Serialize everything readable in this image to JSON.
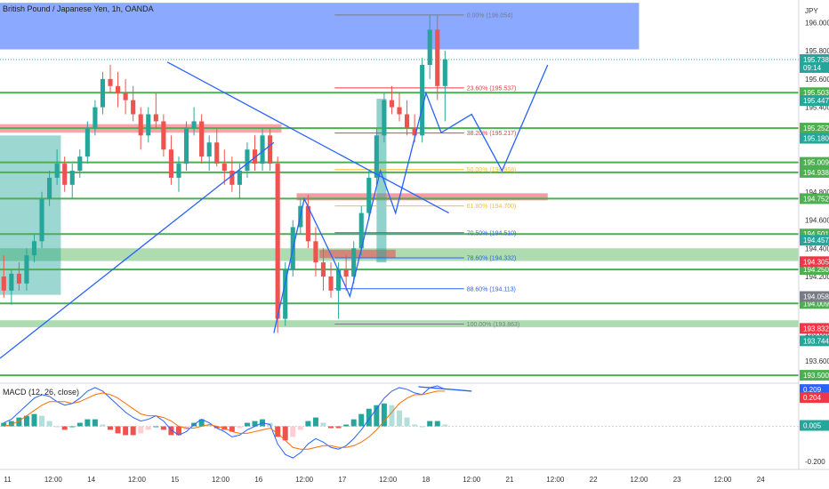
{
  "chart_data": {
    "type": "candlestick",
    "title": "British Pound / Japanese Yen, 1h, OANDA",
    "currency": "JPY",
    "price_axis_ticks": [
      196.0,
      195.8,
      195.6,
      195.4,
      195.2,
      195.0,
      194.8,
      194.6,
      194.4,
      194.2,
      194.0,
      193.8,
      193.6
    ],
    "price_range": [
      193.45,
      196.16
    ],
    "time_range": [
      0,
      105
    ],
    "time_ticks": [
      {
        "label": "11",
        "t": 1
      },
      {
        "label": "12:00",
        "t": 7
      },
      {
        "label": "14",
        "t": 12
      },
      {
        "label": "12:00",
        "t": 18
      },
      {
        "label": "15",
        "t": 23
      },
      {
        "label": "12:00",
        "t": 29
      },
      {
        "label": "16",
        "t": 34
      },
      {
        "label": "12:00",
        "t": 40
      },
      {
        "label": "17",
        "t": 45
      },
      {
        "label": "12:00",
        "t": 51
      },
      {
        "label": "18",
        "t": 56
      },
      {
        "label": "12:00",
        "t": 62
      },
      {
        "label": "21",
        "t": 67
      },
      {
        "label": "12:00",
        "t": 73
      },
      {
        "label": "22",
        "t": 78
      },
      {
        "label": "12:00",
        "t": 84
      },
      {
        "label": "23",
        "t": 89
      },
      {
        "label": "12:00",
        "t": 95
      },
      {
        "label": "24",
        "t": 100
      }
    ],
    "current_price": {
      "label": "195.738",
      "countdown": "09:14",
      "value": 195.738,
      "color": "#26a69a"
    },
    "horizontal_levels": [
      {
        "label": "195.503",
        "value": 195.503
      },
      {
        "label": "195.252",
        "value": 195.252
      },
      {
        "label": "195.009",
        "value": 195.009
      },
      {
        "label": "194.938",
        "value": 194.938
      },
      {
        "label": "194.752",
        "value": 194.752
      },
      {
        "label": "194.501",
        "value": 194.501
      },
      {
        "label": "194.250",
        "value": 194.25
      },
      {
        "label": "194.009",
        "value": 194.009
      },
      {
        "label": "193.500",
        "value": 193.5
      }
    ],
    "extra_price_tags": [
      {
        "label": "195.447",
        "value": 195.447,
        "color": "#26a69a"
      },
      {
        "label": "195.180",
        "value": 195.18,
        "color": "#26a69a"
      },
      {
        "label": "194.457",
        "value": 194.457,
        "color": "#26a69a"
      },
      {
        "label": "194.305",
        "value": 194.305,
        "color": "#f23645"
      },
      {
        "label": "194.058",
        "value": 194.058,
        "color": "#787b86"
      },
      {
        "label": "193.832",
        "value": 193.832,
        "color": "#f23645"
      },
      {
        "label": "193.744",
        "value": 193.744,
        "color": "#26a69a"
      }
    ],
    "fibonacci": [
      {
        "label": "0.00% (196.054)",
        "value": 196.054,
        "color": "#787b86"
      },
      {
        "label": "23.60% (195.537)",
        "value": 195.537,
        "color": "#f23645"
      },
      {
        "label": "38.20% (195.217)",
        "value": 195.217,
        "color": "#f23645"
      },
      {
        "label": "50.00% (194.958)",
        "value": 194.958,
        "color": "#f5c518"
      },
      {
        "label": "61.80% (194.700)",
        "value": 194.7,
        "color": "#f5c518"
      },
      {
        "label": "70.50% (194.510)",
        "value": 194.51,
        "color": "#2962ff"
      },
      {
        "label": "78.60% (194.332)",
        "value": 194.332,
        "color": "#2962ff"
      },
      {
        "label": "88.60% (194.113)",
        "value": 194.113,
        "color": "#2962ff"
      },
      {
        "label": "100.00% (193.863)",
        "value": 193.863,
        "color": "#787b86"
      }
    ],
    "zones": [
      {
        "t0": 0,
        "t1": 84,
        "p0": 195.81,
        "p1": 196.14,
        "color": "#2962ff",
        "opacity": 0.55
      },
      {
        "t0": 0,
        "t1": 37,
        "p0": 195.22,
        "p1": 195.28,
        "color": "#f23645",
        "opacity": 0.45
      },
      {
        "t0": 0,
        "t1": 105,
        "p0": 194.31,
        "p1": 194.4,
        "color": "#4caf50",
        "opacity": 0.45
      },
      {
        "t0": 0,
        "t1": 105,
        "p0": 193.84,
        "p1": 193.89,
        "color": "#4caf50",
        "opacity": 0.45
      },
      {
        "t0": 39,
        "t1": 72,
        "p0": 194.74,
        "p1": 194.79,
        "color": "#f23645",
        "opacity": 0.5
      },
      {
        "t0": 42,
        "t1": 52,
        "p0": 194.33,
        "p1": 194.39,
        "color": "#f23645",
        "opacity": 0.5
      },
      {
        "t0": 0,
        "t1": 8,
        "p0": 194.07,
        "p1": 195.2,
        "color": "#26a69a",
        "opacity": 0.45
      },
      {
        "t0": 49.5,
        "t1": 50.8,
        "p0": 194.3,
        "p1": 195.46,
        "color": "#26a69a",
        "opacity": 0.5
      }
    ],
    "trendlines": [
      {
        "points": [
          [
            0,
            193.62
          ],
          [
            36,
            195.15
          ]
        ],
        "color": "#2962ff"
      },
      {
        "points": [
          [
            22,
            195.72
          ],
          [
            59,
            194.65
          ]
        ],
        "color": "#2962ff"
      },
      {
        "points": [
          [
            36,
            193.8
          ],
          [
            40,
            194.75
          ],
          [
            44,
            194.3
          ],
          [
            46,
            194.06
          ],
          [
            50,
            194.95
          ],
          [
            52,
            194.65
          ],
          [
            56,
            195.5
          ],
          [
            58,
            195.22
          ],
          [
            62,
            195.35
          ],
          [
            66,
            194.95
          ],
          [
            72,
            195.7
          ]
        ],
        "color": "#2962ff"
      }
    ],
    "candles_ohlc": [
      [
        194.2,
        194.35,
        194.05,
        194.1
      ],
      [
        194.1,
        194.25,
        194.0,
        194.22
      ],
      [
        194.22,
        194.3,
        194.1,
        194.15
      ],
      [
        194.15,
        194.4,
        194.1,
        194.35
      ],
      [
        194.35,
        194.5,
        194.3,
        194.45
      ],
      [
        194.45,
        194.8,
        194.4,
        194.75
      ],
      [
        194.75,
        194.95,
        194.7,
        194.9
      ],
      [
        194.9,
        195.1,
        194.85,
        195.0
      ],
      [
        195.0,
        195.05,
        194.8,
        194.85
      ],
      [
        194.85,
        195.0,
        194.75,
        194.95
      ],
      [
        194.95,
        195.1,
        194.9,
        195.05
      ],
      [
        195.05,
        195.3,
        195.0,
        195.25
      ],
      [
        195.25,
        195.45,
        195.2,
        195.4
      ],
      [
        195.4,
        195.65,
        195.35,
        195.6
      ],
      [
        195.6,
        195.7,
        195.5,
        195.55
      ],
      [
        195.55,
        195.65,
        195.4,
        195.5
      ],
      [
        195.5,
        195.6,
        195.35,
        195.45
      ],
      [
        195.45,
        195.55,
        195.3,
        195.35
      ],
      [
        195.35,
        195.4,
        195.1,
        195.2
      ],
      [
        195.2,
        195.4,
        195.15,
        195.35
      ],
      [
        195.35,
        195.5,
        195.25,
        195.3
      ],
      [
        195.3,
        195.35,
        195.05,
        195.1
      ],
      [
        195.1,
        195.2,
        194.85,
        194.9
      ],
      [
        194.9,
        195.05,
        194.8,
        195.0
      ],
      [
        195.0,
        195.3,
        194.95,
        195.25
      ],
      [
        195.25,
        195.4,
        195.2,
        195.3
      ],
      [
        195.3,
        195.35,
        195.0,
        195.05
      ],
      [
        195.05,
        195.2,
        194.95,
        195.15
      ],
      [
        195.15,
        195.25,
        194.98,
        195.0
      ],
      [
        195.0,
        195.1,
        194.85,
        194.95
      ],
      [
        194.95,
        195.05,
        194.8,
        194.85
      ],
      [
        194.85,
        195.0,
        194.75,
        194.95
      ],
      [
        194.95,
        195.15,
        194.9,
        195.1
      ],
      [
        195.1,
        195.2,
        194.95,
        195.0
      ],
      [
        195.0,
        195.25,
        194.95,
        195.2
      ],
      [
        195.2,
        195.25,
        194.95,
        195.0
      ],
      [
        195.0,
        195.05,
        193.8,
        193.9
      ],
      [
        193.9,
        194.3,
        193.85,
        194.25
      ],
      [
        194.25,
        194.6,
        194.2,
        194.55
      ],
      [
        194.55,
        194.75,
        194.5,
        194.7
      ],
      [
        194.7,
        194.78,
        194.4,
        194.45
      ],
      [
        194.45,
        194.55,
        194.2,
        194.3
      ],
      [
        194.3,
        194.4,
        194.1,
        194.2
      ],
      [
        194.2,
        194.3,
        194.05,
        194.1
      ],
      [
        194.1,
        194.3,
        193.9,
        194.25
      ],
      [
        194.25,
        194.35,
        194.1,
        194.2
      ],
      [
        194.2,
        194.45,
        194.15,
        194.4
      ],
      [
        194.4,
        194.7,
        194.35,
        194.65
      ],
      [
        194.65,
        194.95,
        194.6,
        194.9
      ],
      [
        194.9,
        195.25,
        194.85,
        195.2
      ],
      [
        195.2,
        195.5,
        195.15,
        195.45
      ],
      [
        195.45,
        195.55,
        195.35,
        195.4
      ],
      [
        195.4,
        195.5,
        195.3,
        195.35
      ],
      [
        195.35,
        195.45,
        195.2,
        195.25
      ],
      [
        195.25,
        195.35,
        195.15,
        195.2
      ],
      [
        195.2,
        195.75,
        195.15,
        195.7
      ],
      [
        195.7,
        196.05,
        195.6,
        195.95
      ],
      [
        195.95,
        196.05,
        195.45,
        195.55
      ],
      [
        195.55,
        195.8,
        195.3,
        195.74
      ]
    ],
    "candle_start_t": 0,
    "candle_step_t": 1,
    "indicator": {
      "name": "MACD (12, 26, close)",
      "range": [
        -0.24,
        0.24
      ],
      "ticks": [
        {
          "label": "-0.200",
          "value": -0.2
        }
      ],
      "tags": [
        {
          "label": "0.209",
          "value": 0.209,
          "color": "#2962ff"
        },
        {
          "label": "0.204",
          "value": 0.204,
          "color": "#f23645"
        },
        {
          "label": "0.005",
          "value": 0.005,
          "color": "#26a69a"
        }
      ],
      "macd": [
        0.02,
        0.04,
        0.08,
        0.12,
        0.16,
        0.18,
        0.17,
        0.14,
        0.12,
        0.13,
        0.16,
        0.2,
        0.22,
        0.2,
        0.16,
        0.12,
        0.08,
        0.05,
        0.03,
        0.04,
        0.06,
        0.03,
        -0.02,
        -0.05,
        -0.03,
        0.01,
        0.04,
        0.02,
        -0.01,
        -0.03,
        -0.06,
        -0.05,
        -0.02,
        0.0,
        0.02,
        0.01,
        -0.1,
        -0.16,
        -0.18,
        -0.15,
        -0.1,
        -0.07,
        -0.09,
        -0.12,
        -0.13,
        -0.11,
        -0.07,
        -0.02,
        0.04,
        0.1,
        0.16,
        0.2,
        0.22,
        0.21,
        0.19,
        0.18,
        0.22,
        0.23,
        0.21
      ],
      "signal": [
        0.0,
        0.01,
        0.03,
        0.06,
        0.09,
        0.12,
        0.14,
        0.14,
        0.14,
        0.13,
        0.14,
        0.16,
        0.18,
        0.19,
        0.18,
        0.16,
        0.13,
        0.1,
        0.07,
        0.06,
        0.06,
        0.05,
        0.03,
        0.0,
        -0.01,
        -0.01,
        0.0,
        0.01,
        0.0,
        -0.01,
        -0.03,
        -0.04,
        -0.04,
        -0.03,
        -0.02,
        -0.01,
        -0.04,
        -0.08,
        -0.12,
        -0.13,
        -0.13,
        -0.12,
        -0.11,
        -0.11,
        -0.12,
        -0.12,
        -0.11,
        -0.09,
        -0.06,
        -0.02,
        0.03,
        0.08,
        0.13,
        0.16,
        0.18,
        0.18,
        0.19,
        0.2,
        0.2
      ],
      "histogram": [
        0.02,
        0.03,
        0.05,
        0.06,
        0.07,
        0.06,
        0.03,
        0.0,
        -0.02,
        0.0,
        0.02,
        0.04,
        0.04,
        0.01,
        -0.02,
        -0.04,
        -0.05,
        -0.05,
        -0.04,
        -0.02,
        0.0,
        -0.02,
        -0.05,
        -0.05,
        -0.02,
        0.02,
        0.04,
        0.01,
        -0.01,
        -0.02,
        -0.03,
        -0.01,
        0.02,
        0.03,
        0.04,
        0.02,
        -0.06,
        -0.08,
        -0.06,
        -0.02,
        0.03,
        0.05,
        0.02,
        -0.01,
        -0.01,
        0.01,
        0.04,
        0.07,
        0.1,
        0.12,
        0.13,
        0.12,
        0.09,
        0.05,
        0.01,
        0.0,
        0.03,
        0.03,
        0.01
      ],
      "trendline": {
        "points": [
          [
            55,
            0.225
          ],
          [
            62,
            0.2
          ]
        ],
        "color": "#2962ff"
      }
    }
  }
}
